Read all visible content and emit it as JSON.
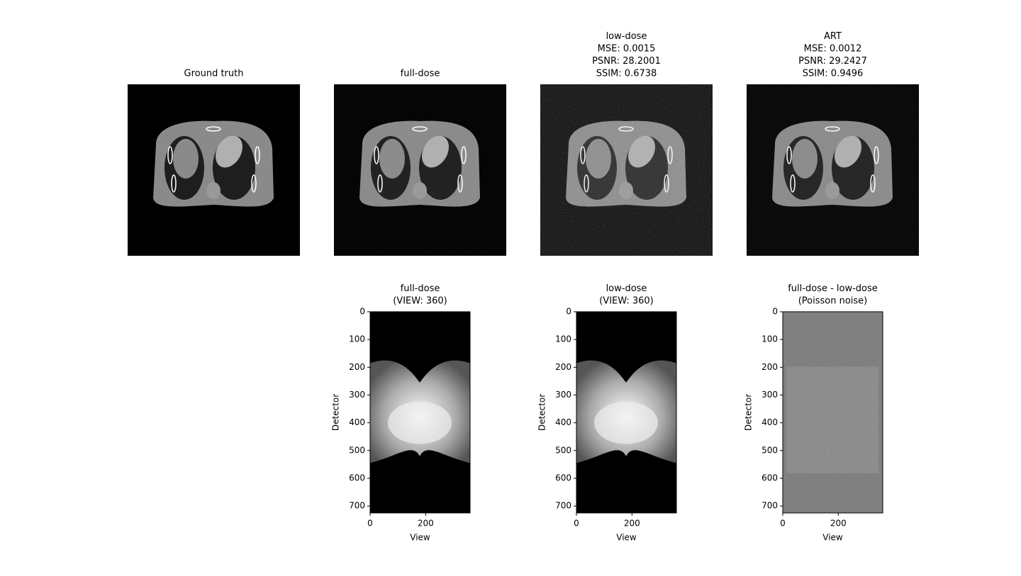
{
  "chart_data": [
    {
      "type": "image",
      "title": [
        "Ground truth"
      ]
    },
    {
      "type": "image",
      "title": [
        "full-dose"
      ]
    },
    {
      "type": "image",
      "title": [
        "low-dose",
        "MSE: 0.0015",
        "PSNR: 28.2001",
        "SSIM: 0.6738"
      ]
    },
    {
      "type": "image",
      "title": [
        "ART",
        "MSE: 0.0012",
        "PSNR: 29.2427",
        "SSIM: 0.9496"
      ]
    },
    {
      "type": "heatmap",
      "title": [
        "full-dose",
        "(VIEW: 360)"
      ],
      "xlabel": "View",
      "ylabel": "Detector",
      "xlim": [
        0,
        360
      ],
      "ylim": [
        725,
        0
      ],
      "xticks": [
        0,
        200
      ],
      "yticks": [
        0,
        100,
        200,
        300,
        400,
        500,
        600,
        700
      ]
    },
    {
      "type": "heatmap",
      "title": [
        "low-dose",
        "(VIEW: 360)"
      ],
      "xlabel": "View",
      "ylabel": "Detector",
      "xlim": [
        0,
        360
      ],
      "ylim": [
        725,
        0
      ],
      "xticks": [
        0,
        200
      ],
      "yticks": [
        0,
        100,
        200,
        300,
        400,
        500,
        600,
        700
      ]
    },
    {
      "type": "difference",
      "title": [
        "full-dose - low-dose",
        "(Poisson noise)"
      ],
      "xlabel": "View",
      "ylabel": "Detector",
      "xlim": [
        0,
        360
      ],
      "ylim": [
        725,
        0
      ],
      "xticks": [
        0,
        200
      ],
      "yticks": [
        0,
        100,
        200,
        300,
        400,
        500,
        600,
        700
      ]
    }
  ]
}
